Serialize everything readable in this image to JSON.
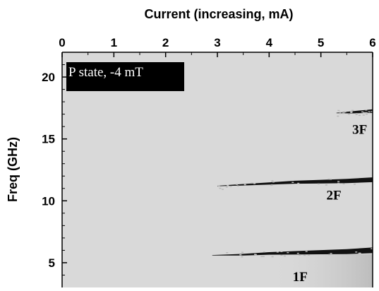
{
  "chart_data": {
    "type": "heatmap",
    "title": "",
    "xlabel": "Current (increasing, mA)",
    "ylabel": "Freq (GHz)",
    "xaxis_position": "top",
    "xlim": [
      0,
      6
    ],
    "ylim": [
      3,
      22
    ],
    "x_ticks": [
      0,
      1,
      2,
      3,
      4,
      5,
      6
    ],
    "y_ticks": [
      5,
      10,
      15,
      20
    ],
    "legend": "P state, -4 mT",
    "legend_placement": "top-left",
    "background_color": "#d9d9d9",
    "series": [
      {
        "name": "1F",
        "x": [
          2.9,
          3.5,
          4.0,
          4.5,
          5.0,
          5.5,
          6.0
        ],
        "y": [
          5.6,
          5.65,
          5.75,
          5.8,
          5.85,
          5.9,
          6.0
        ]
      },
      {
        "name": "2F",
        "x": [
          3.0,
          3.5,
          4.0,
          4.5,
          5.0,
          5.5,
          6.0
        ],
        "y": [
          11.2,
          11.3,
          11.4,
          11.5,
          11.55,
          11.6,
          11.7
        ]
      },
      {
        "name": "3F",
        "x": [
          5.3,
          5.6,
          6.0
        ],
        "y": [
          17.1,
          17.15,
          17.25
        ]
      }
    ],
    "annotations": [
      {
        "text": "3F",
        "x": 5.75,
        "y": 15.8
      },
      {
        "text": "2F",
        "x": 5.25,
        "y": 10.5
      },
      {
        "text": "1F",
        "x": 4.6,
        "y": 3.9
      }
    ]
  }
}
